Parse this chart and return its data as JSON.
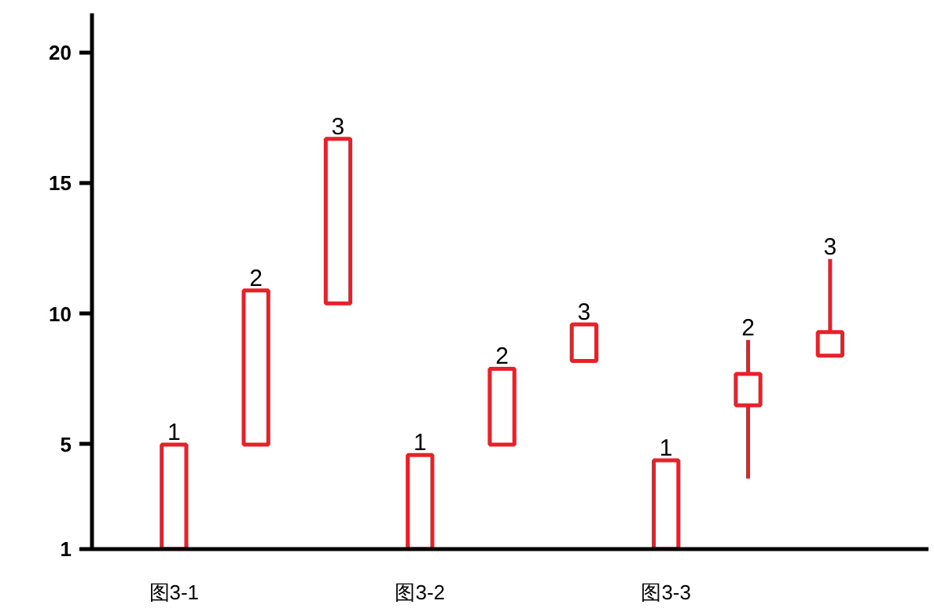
{
  "chart_data": {
    "type": "candlestick",
    "color": "#e8202a",
    "categories": [
      "图3-1",
      null,
      null,
      "图3-2",
      null,
      null,
      "图3-3",
      null,
      null
    ],
    "ohlc": [
      [
        1,
        5,
        1,
        5
      ],
      [
        5,
        10.9,
        5,
        10.9
      ],
      [
        10.4,
        16.7,
        10.4,
        16.7
      ],
      [
        1,
        4.6,
        1,
        4.6
      ],
      [
        5,
        7.9,
        5,
        7.9
      ],
      [
        8.2,
        9.6,
        8.2,
        9.6
      ],
      [
        1,
        4.4,
        1,
        4.4
      ],
      [
        6.5,
        9.0,
        3.7,
        7.7
      ],
      [
        8.4,
        12.1,
        8.4,
        9.3
      ]
    ],
    "ylim": [
      1,
      21.5
    ],
    "yticks": [
      1,
      5,
      10,
      15,
      20
    ],
    "annotations": [
      "1",
      "2",
      "3",
      "1",
      "2",
      "3",
      "1",
      "2",
      "3"
    ],
    "grid": false
  }
}
